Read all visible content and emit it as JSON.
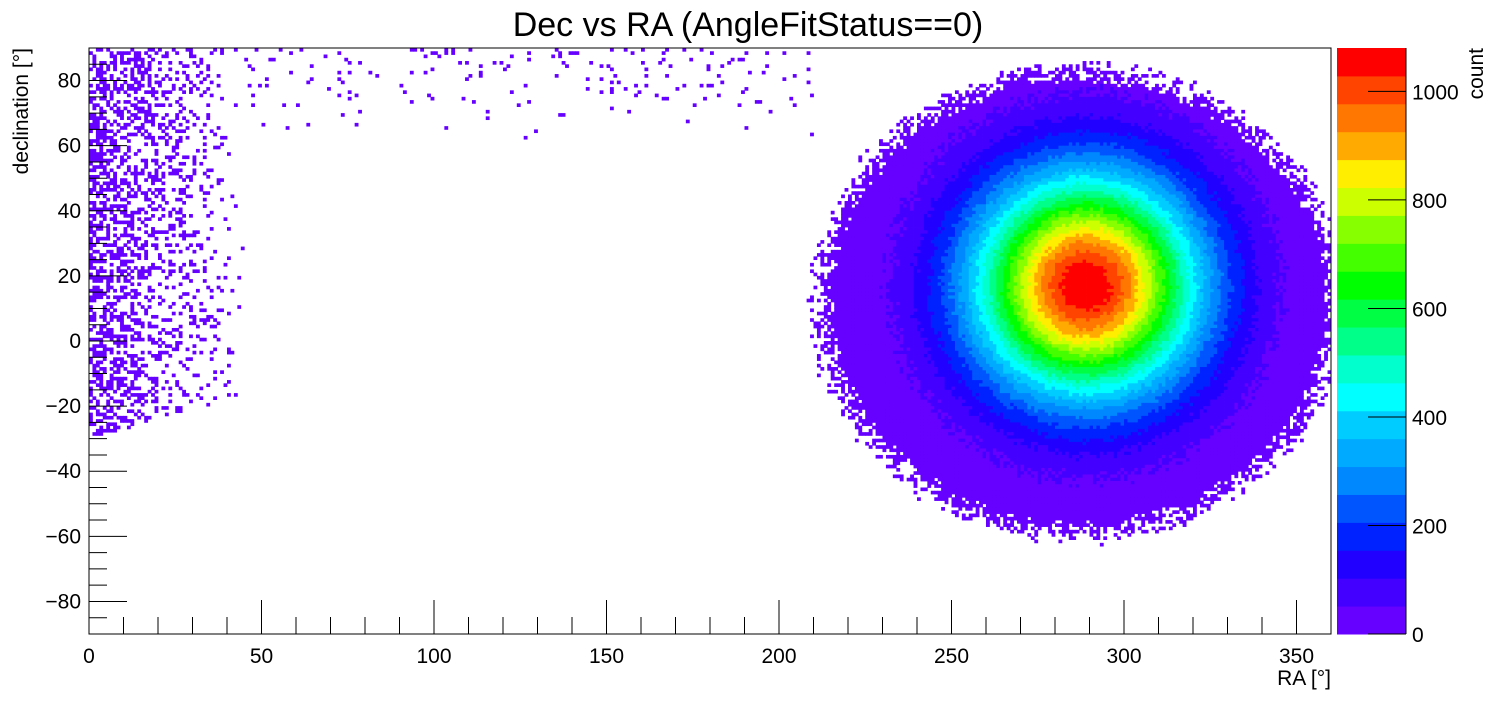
{
  "chart_data": {
    "type": "heatmap",
    "title": "Dec vs RA (AngleFitStatus==0)",
    "xlabel": "RA [°]",
    "ylabel": "declination [°]",
    "zlabel": "count",
    "xlim": [
      0,
      360
    ],
    "ylim": [
      -90,
      90
    ],
    "zlim": [
      0,
      1080
    ],
    "x_ticks": [
      "0",
      "50",
      "100",
      "150",
      "200",
      "250",
      "300",
      "350"
    ],
    "y_ticks": [
      "−80",
      "−60",
      "−40",
      "−20",
      "0",
      "20",
      "40",
      "60",
      "80"
    ],
    "z_ticks": [
      "0",
      "200",
      "400",
      "600",
      "800",
      "1000"
    ],
    "palette": [
      "#6600ff",
      "#4400ff",
      "#2200ff",
      "#0022ff",
      "#0055ff",
      "#0088ff",
      "#00aaff",
      "#00ccff",
      "#00ffff",
      "#00ffcc",
      "#00ff88",
      "#00ff44",
      "#00ff00",
      "#44ff00",
      "#88ff00",
      "#ccff00",
      "#ffee00",
      "#ffaa00",
      "#ff7700",
      "#ff4400",
      "#ff0000"
    ],
    "hotspot": {
      "ra": 289,
      "dec": 17,
      "peak_count": 1080
    },
    "regions": [
      {
        "ra_range": [
          210,
          360
        ],
        "dec_range": [
          -60,
          82
        ],
        "description": "dense populated region"
      },
      {
        "ra_range": [
          0,
          45
        ],
        "dec_range": [
          -30,
          88
        ],
        "description": "sparse populated region"
      }
    ],
    "grid": false
  }
}
